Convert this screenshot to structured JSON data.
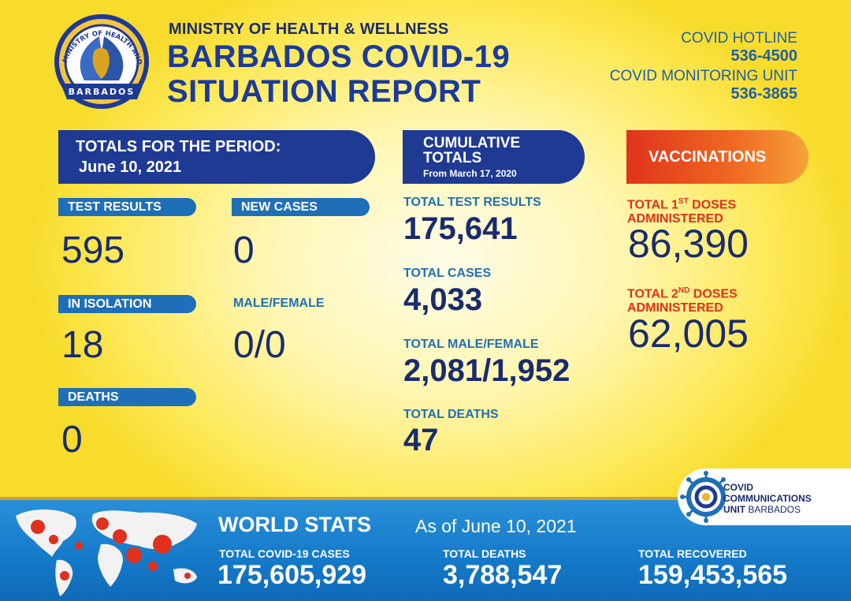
{
  "header": {
    "logo_text_top": "MINISTRY OF HEALTH AND WELLNESS",
    "logo_text_bottom": "BARBADOS",
    "ministry": "MINISTRY OF HEALTH & WELLNESS",
    "title_line1": "BARBADOS COVID-19",
    "title_line2": "SITUATION REPORT",
    "hotline_label": "COVID HOTLINE",
    "hotline_number": "536-4500",
    "monitoring_label": "COVID MONITORING UNIT",
    "monitoring_number": "536-3865"
  },
  "period": {
    "banner_line1": "TOTALS FOR THE PERIOD:",
    "banner_line2": "June 10, 2021",
    "test_results_label": "TEST RESULTS",
    "test_results_value": "595",
    "new_cases_label": "NEW CASES",
    "new_cases_value": "0",
    "isolation_label": "IN ISOLATION",
    "isolation_value": "18",
    "male_female_label": "MALE/FEMALE",
    "male_female_value": "0/0",
    "deaths_label": "DEATHS",
    "deaths_value": "0"
  },
  "cumulative": {
    "banner_line1": "CUMULATIVE",
    "banner_line2": "TOTALS",
    "banner_sub": "From March 17, 2020",
    "test_results_label": "TOTAL TEST RESULTS",
    "test_results_value": "175,641",
    "cases_label": "TOTAL CASES",
    "cases_value": "4,033",
    "male_female_label": "TOTAL MALE/FEMALE",
    "male_female_value": "2,081/1,952",
    "deaths_label": "TOTAL DEATHS",
    "deaths_value": "47"
  },
  "vaccinations": {
    "banner": "VACCINATIONS",
    "first_label_a": "TOTAL 1",
    "first_label_sup": "ST",
    "first_label_b": " DOSES",
    "first_label_line2": "ADMINISTERED",
    "first_value": "86,390",
    "second_label_a": "TOTAL 2",
    "second_label_sup": "ND",
    "second_label_b": " DOSES",
    "second_label_line2": "ADMINISTERED",
    "second_value": "62,005"
  },
  "world": {
    "title": "WORLD STATS",
    "date": "As of June 10, 2021",
    "cases_label": "TOTAL COVID-19 CASES",
    "cases_value": "175,605,929",
    "deaths_label": "TOTAL DEATHS",
    "deaths_value": "3,788,547",
    "recovered_label": "TOTAL RECOVERED",
    "recovered_value": "159,453,565"
  },
  "ccu": {
    "line1": "COVID",
    "line2": "COMMUNICATIONS",
    "line3a": "UNIT",
    "line3b": " BARBADOS"
  },
  "colors": {
    "navy": "#1f3a93",
    "blue": "#1f6fb8",
    "red": "#e0301e",
    "yellow": "#fde95a"
  }
}
